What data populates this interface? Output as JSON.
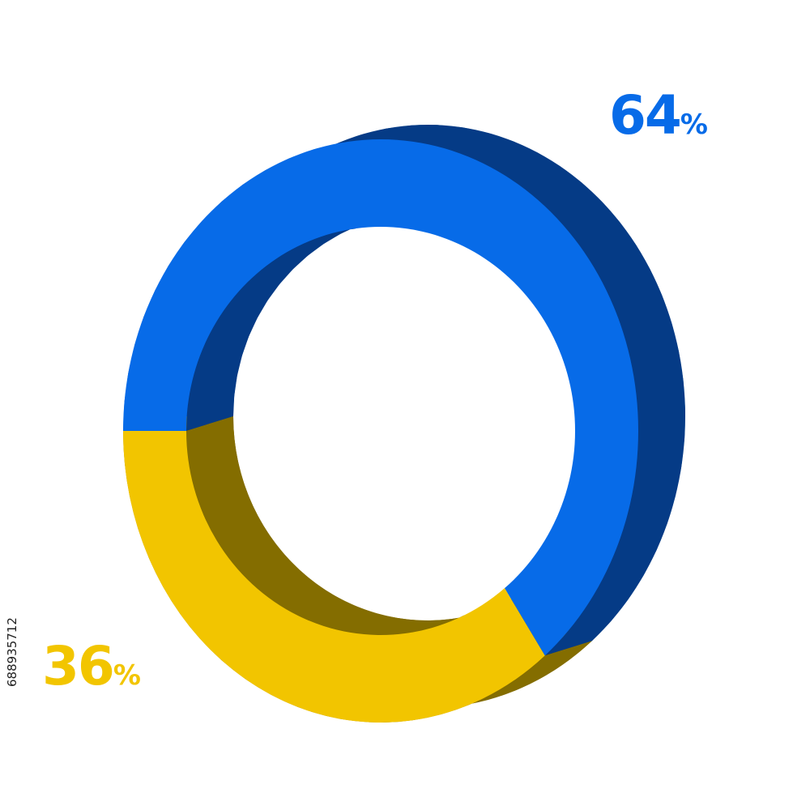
{
  "chart_data": {
    "type": "pie",
    "variant": "3d-donut",
    "title": "",
    "series": [
      {
        "values": [
          64,
          36
        ],
        "labels": [
          "64",
          "36"
        ],
        "colors": {
          "face": [
            "#076be8",
            "#f2c500"
          ],
          "side": [
            "#053b86",
            "#846d00"
          ]
        }
      }
    ],
    "value_suffix": "%",
    "start": "9 o'clock",
    "direction": "clockwise",
    "grid": false,
    "legend": false
  },
  "labels": [
    {
      "value": "64",
      "suffix": "%",
      "color": "#076be8"
    },
    {
      "value": "36",
      "suffix": "%",
      "color": "#f2c500"
    }
  ],
  "image_id_text": "688935712"
}
